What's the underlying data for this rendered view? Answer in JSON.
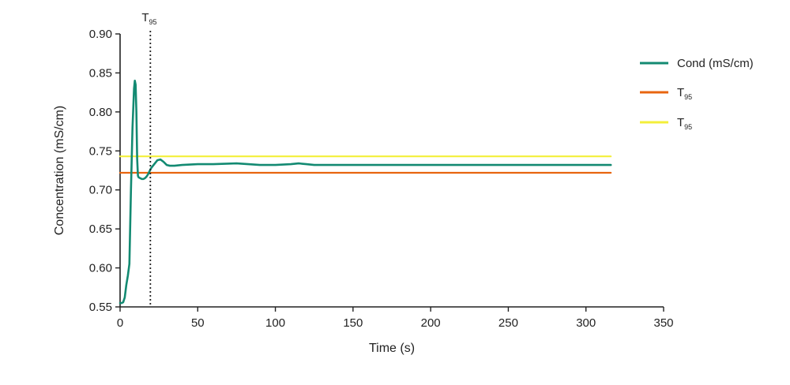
{
  "chart_data": {
    "type": "line",
    "xlabel": "Time (s)",
    "ylabel": "Concentration (mS/cm)",
    "xlim": [
      0,
      350
    ],
    "ylim": [
      0.55,
      0.9
    ],
    "x_ticks": [
      "0",
      "50",
      "100",
      "150",
      "200",
      "250",
      "300",
      "350"
    ],
    "y_ticks": [
      "0.55",
      "0.60",
      "0.65",
      "0.70",
      "0.75",
      "0.80",
      "0.85",
      "0.90"
    ],
    "grid": false,
    "legend_position": "right",
    "series": [
      {
        "name": "Cond (mS/cm)",
        "color": "#138a72",
        "x": [
          0,
          1,
          2,
          3,
          4,
          5,
          6,
          7,
          8,
          9,
          9.5,
          10,
          10.5,
          11,
          11.5,
          12,
          13,
          14,
          15,
          16,
          17,
          18,
          19,
          20,
          22,
          24,
          26,
          28,
          30,
          32,
          35,
          40,
          50,
          60,
          75,
          90,
          100,
          110,
          115,
          120,
          125,
          130,
          150,
          175,
          200,
          250,
          300,
          316
        ],
        "y": [
          0.555,
          0.555,
          0.556,
          0.562,
          0.578,
          0.59,
          0.605,
          0.7,
          0.78,
          0.83,
          0.84,
          0.835,
          0.8,
          0.74,
          0.718,
          0.716,
          0.715,
          0.714,
          0.714,
          0.715,
          0.717,
          0.72,
          0.724,
          0.728,
          0.733,
          0.738,
          0.739,
          0.736,
          0.732,
          0.731,
          0.731,
          0.732,
          0.733,
          0.733,
          0.734,
          0.732,
          0.732,
          0.733,
          0.734,
          0.733,
          0.732,
          0.732,
          0.732,
          0.732,
          0.732,
          0.732,
          0.732,
          0.732
        ]
      },
      {
        "name": "T95",
        "color": "#e8650f",
        "x": [
          0,
          316
        ],
        "y": [
          0.722,
          0.722
        ]
      },
      {
        "name": "T95",
        "color": "#f3ef3a",
        "x": [
          0,
          316
        ],
        "y": [
          0.743,
          0.743
        ]
      }
    ],
    "annotations": [
      {
        "label": "T",
        "subscript": "95",
        "x": 19.5
      }
    ],
    "legend": [
      {
        "label": "Cond (mS/cm)",
        "subscript": "",
        "color": "#138a72"
      },
      {
        "label": "T",
        "subscript": "95",
        "color": "#e8650f"
      },
      {
        "label": "T",
        "subscript": "95",
        "color": "#f3ef3a"
      }
    ]
  }
}
